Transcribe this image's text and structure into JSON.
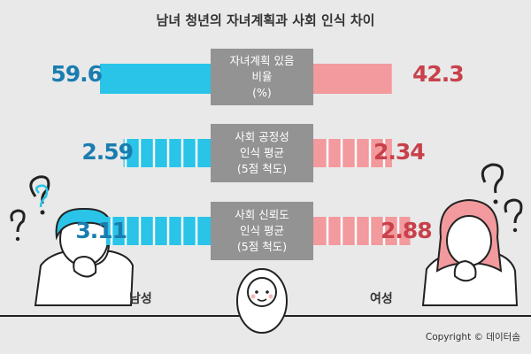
{
  "title": "남녀 청년의 자녀계획과 사회 인식 차이",
  "labels": {
    "male": "남성",
    "female": "여성",
    "copyright": "Copyright © 데이터솜"
  },
  "colors": {
    "male_bar": "#29c4e8",
    "male_text": "#1a7db0",
    "female_bar": "#f29a9d",
    "female_text": "#c8414b",
    "center_box": "#939393",
    "background": "#e9e9e9"
  },
  "chart_data": {
    "type": "bar",
    "title": "남녀 청년의 자녀계획과 사회 인식 차이",
    "categories": [
      [
        "자녀계획 있음",
        "비율",
        "(%)"
      ],
      [
        "사회 공정성",
        "인식 평균",
        "(5점 척도)"
      ],
      [
        "사회 신뢰도",
        "인식 평균",
        "(5점 척도)"
      ]
    ],
    "series": [
      {
        "name": "남성",
        "values": [
          59.6,
          2.59,
          3.11
        ]
      },
      {
        "name": "여성",
        "values": [
          42.3,
          2.34,
          2.88
        ]
      }
    ],
    "value_labels": {
      "male": [
        "59.6",
        "2.59",
        "3.11"
      ],
      "female": [
        "42.3",
        "2.34",
        "2.88"
      ]
    }
  }
}
